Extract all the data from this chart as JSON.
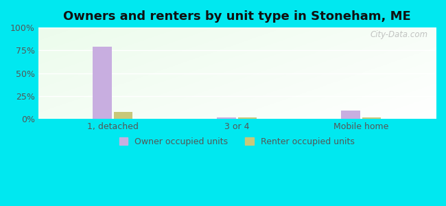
{
  "title": "Owners and renters by unit type in Stoneham, ME",
  "categories": [
    "1, detached",
    "3 or 4",
    "Mobile home"
  ],
  "owner_values": [
    79,
    2,
    9
  ],
  "renter_values": [
    8,
    2,
    2
  ],
  "owner_color": "#c8aee0",
  "renter_color": "#c8c87a",
  "ylim": [
    0,
    100
  ],
  "yticks": [
    0,
    25,
    50,
    75,
    100
  ],
  "ytick_labels": [
    "0%",
    "25%",
    "50%",
    "75%",
    "100%"
  ],
  "title_fontsize": 13,
  "legend_labels": [
    "Owner occupied units",
    "Renter occupied units"
  ],
  "outer_bg": "#00e8f0",
  "watermark": "City-Data.com"
}
